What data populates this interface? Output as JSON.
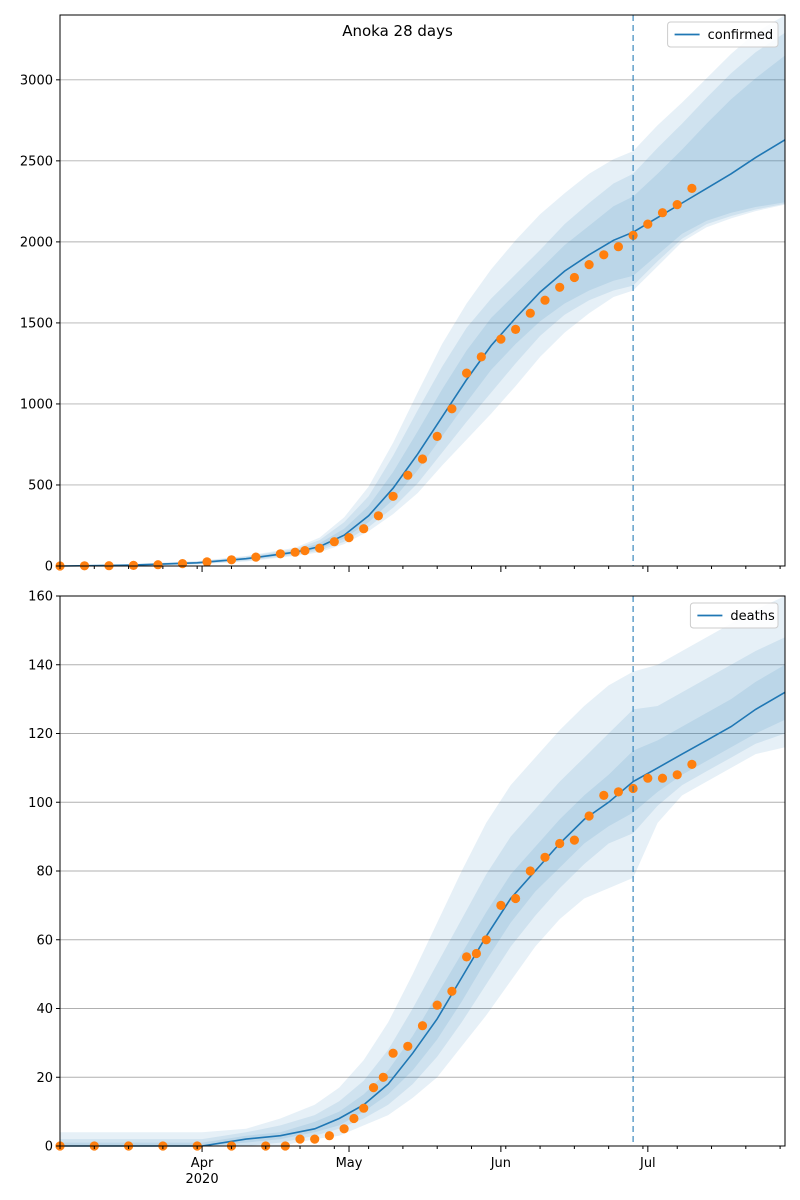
{
  "chart_data": [
    {
      "type": "line",
      "title": "Anoka 28 days",
      "legend": "top-right",
      "legend_entries": [
        "confirmed"
      ],
      "grid": "horizontal",
      "ylim": [
        0,
        3400
      ],
      "yticks": [
        0,
        500,
        1000,
        1500,
        2000,
        2500,
        3000
      ],
      "xlim": [
        "2020-03-03",
        "2020-07-29"
      ],
      "forecast_start": "2020-06-28",
      "series": [
        {
          "name": "confirmed",
          "kind": "model",
          "x": [
            "2020-03-03",
            "2020-03-17",
            "2020-03-31",
            "2020-04-10",
            "2020-04-20",
            "2020-04-25",
            "2020-04-30",
            "2020-05-05",
            "2020-05-10",
            "2020-05-15",
            "2020-05-20",
            "2020-05-25",
            "2020-05-30",
            "2020-06-04",
            "2020-06-09",
            "2020-06-14",
            "2020-06-19",
            "2020-06-24",
            "2020-06-28",
            "2020-07-03",
            "2020-07-08",
            "2020-07-13",
            "2020-07-18",
            "2020-07-23",
            "2020-07-29"
          ],
          "values": [
            0,
            5,
            20,
            45,
            85,
            120,
            190,
            310,
            480,
            690,
            920,
            1150,
            1360,
            1530,
            1690,
            1820,
            1920,
            2010,
            2060,
            2150,
            2240,
            2330,
            2420,
            2520,
            2630
          ],
          "bands": [
            {
              "lower": [
                0,
                0,
                15,
                38,
                75,
                105,
                170,
                270,
                410,
                590,
                800,
                1010,
                1210,
                1370,
                1510,
                1620,
                1700,
                1760,
                1790,
                1920,
                2050,
                2130,
                2180,
                2215,
                2245
              ],
              "upper": [
                0,
                8,
                25,
                52,
                95,
                140,
                230,
                370,
                580,
                830,
                1090,
                1330,
                1530,
                1680,
                1830,
                1980,
                2100,
                2220,
                2280,
                2420,
                2570,
                2730,
                2880,
                3010,
                3150
              ]
            },
            {
              "lower": [
                0,
                0,
                12,
                32,
                68,
                95,
                150,
                240,
                360,
                510,
                700,
                890,
                1070,
                1250,
                1420,
                1550,
                1640,
                1700,
                1730,
                1880,
                2020,
                2110,
                2160,
                2200,
                2235
              ],
              "upper": [
                0,
                10,
                28,
                58,
                105,
                160,
                270,
                430,
                680,
                960,
                1230,
                1470,
                1650,
                1800,
                1950,
                2110,
                2240,
                2360,
                2420,
                2580,
                2730,
                2890,
                3040,
                3170,
                3290
              ]
            },
            {
              "lower": [
                0,
                0,
                10,
                28,
                62,
                85,
                135,
                215,
                320,
                450,
                620,
                780,
                940,
                1110,
                1290,
                1440,
                1560,
                1660,
                1700,
                1850,
                2000,
                2090,
                2145,
                2190,
                2230
              ],
              "upper": [
                0,
                12,
                30,
                62,
                112,
                175,
                300,
                490,
                760,
                1070,
                1370,
                1620,
                1830,
                2010,
                2170,
                2300,
                2420,
                2510,
                2560,
                2720,
                2860,
                3010,
                3160,
                3290,
                3400
              ]
            }
          ]
        },
        {
          "name": "observed",
          "kind": "points",
          "x": [
            "2020-03-03",
            "2020-03-08",
            "2020-03-13",
            "2020-03-18",
            "2020-03-23",
            "2020-03-28",
            "2020-04-02",
            "2020-04-07",
            "2020-04-12",
            "2020-04-17",
            "2020-04-20",
            "2020-04-22",
            "2020-04-25",
            "2020-04-28",
            "2020-05-01",
            "2020-05-04",
            "2020-05-07",
            "2020-05-10",
            "2020-05-13",
            "2020-05-16",
            "2020-05-19",
            "2020-05-22",
            "2020-05-25",
            "2020-05-28",
            "2020-06-01",
            "2020-06-04",
            "2020-06-07",
            "2020-06-10",
            "2020-06-13",
            "2020-06-16",
            "2020-06-19",
            "2020-06-22",
            "2020-06-25",
            "2020-06-28",
            "2020-07-01",
            "2020-07-04",
            "2020-07-07",
            "2020-07-10"
          ],
          "values": [
            0,
            1,
            2,
            4,
            8,
            15,
            25,
            38,
            55,
            75,
            85,
            95,
            110,
            150,
            175,
            230,
            310,
            430,
            560,
            660,
            800,
            970,
            1190,
            1290,
            1400,
            1460,
            1560,
            1640,
            1720,
            1780,
            1860,
            1920,
            1970,
            2040,
            2110,
            2180,
            2230,
            2330
          ]
        }
      ]
    },
    {
      "type": "line",
      "title": "",
      "legend": "top-right",
      "legend_entries": [
        "deaths"
      ],
      "grid": "horizontal",
      "ylim": [
        0,
        160
      ],
      "yticks": [
        0,
        20,
        40,
        60,
        80,
        100,
        120,
        140,
        160
      ],
      "xlim": [
        "2020-03-03",
        "2020-07-29"
      ],
      "xticks": [
        {
          "date": "2020-04-01",
          "label": "Apr",
          "sublabel": "2020"
        },
        {
          "date": "2020-05-01",
          "label": "May",
          "sublabel": ""
        },
        {
          "date": "2020-06-01",
          "label": "Jun",
          "sublabel": ""
        },
        {
          "date": "2020-07-01",
          "label": "Jul",
          "sublabel": ""
        }
      ],
      "forecast_start": "2020-06-28",
      "series": [
        {
          "name": "deaths",
          "kind": "model",
          "x": [
            "2020-03-03",
            "2020-04-01",
            "2020-04-10",
            "2020-04-17",
            "2020-04-24",
            "2020-04-29",
            "2020-05-04",
            "2020-05-09",
            "2020-05-14",
            "2020-05-19",
            "2020-05-24",
            "2020-05-29",
            "2020-06-03",
            "2020-06-08",
            "2020-06-13",
            "2020-06-18",
            "2020-06-23",
            "2020-06-28",
            "2020-07-03",
            "2020-07-08",
            "2020-07-13",
            "2020-07-18",
            "2020-07-23",
            "2020-07-29"
          ],
          "values": [
            0,
            0,
            2,
            3,
            5,
            8,
            12,
            18,
            27,
            37,
            49,
            61,
            72,
            80,
            88,
            95,
            100,
            106,
            110,
            114,
            118,
            122,
            127,
            132
          ],
          "bands": [
            {
              "lower": [
                0,
                0,
                1,
                2,
                4,
                6,
                10,
                15,
                22,
                31,
                42,
                54,
                65,
                74,
                81,
                88,
                93,
                97,
                103,
                108,
                112,
                116,
                120,
                124
              ],
              "upper": [
                1,
                1,
                3,
                4,
                7,
                10,
                15,
                22,
                32,
                44,
                56,
                68,
                79,
                87,
                95,
                102,
                108,
                115,
                118,
                122,
                126,
                130,
                135,
                140
              ]
            },
            {
              "lower": [
                0,
                0,
                0,
                1,
                3,
                5,
                8,
                12,
                18,
                26,
                36,
                47,
                58,
                67,
                75,
                82,
                88,
                91,
                99,
                105,
                109,
                113,
                117,
                120
              ],
              "upper": [
                2,
                2,
                4,
                6,
                9,
                13,
                19,
                28,
                40,
                53,
                66,
                79,
                90,
                98,
                106,
                113,
                120,
                127,
                128,
                132,
                136,
                140,
                144,
                148
              ]
            },
            {
              "lower": [
                0,
                0,
                0,
                0,
                2,
                3,
                6,
                9,
                14,
                20,
                29,
                38,
                48,
                58,
                66,
                72,
                75,
                78,
                94,
                102,
                106,
                110,
                114,
                116
              ],
              "upper": [
                4,
                4,
                5,
                8,
                12,
                17,
                25,
                36,
                50,
                65,
                80,
                94,
                105,
                113,
                121,
                128,
                134,
                138,
                140,
                144,
                148,
                152,
                156,
                160
              ]
            }
          ]
        },
        {
          "name": "observed",
          "kind": "points",
          "x": [
            "2020-03-03",
            "2020-03-10",
            "2020-03-17",
            "2020-03-24",
            "2020-03-31",
            "2020-04-07",
            "2020-04-14",
            "2020-04-18",
            "2020-04-21",
            "2020-04-24",
            "2020-04-27",
            "2020-04-30",
            "2020-05-02",
            "2020-05-04",
            "2020-05-06",
            "2020-05-08",
            "2020-05-10",
            "2020-05-13",
            "2020-05-16",
            "2020-05-19",
            "2020-05-22",
            "2020-05-25",
            "2020-05-27",
            "2020-05-29",
            "2020-06-01",
            "2020-06-04",
            "2020-06-07",
            "2020-06-10",
            "2020-06-13",
            "2020-06-16",
            "2020-06-19",
            "2020-06-22",
            "2020-06-25",
            "2020-06-28",
            "2020-07-01",
            "2020-07-04",
            "2020-07-07",
            "2020-07-10"
          ],
          "values": [
            0,
            0,
            0,
            0,
            0,
            0,
            0,
            0,
            2,
            2,
            3,
            5,
            8,
            11,
            17,
            20,
            27,
            29,
            35,
            41,
            45,
            55,
            56,
            60,
            70,
            72,
            80,
            84,
            88,
            89,
            96,
            102,
            103,
            104,
            107,
            107,
            108,
            111
          ]
        }
      ]
    }
  ]
}
